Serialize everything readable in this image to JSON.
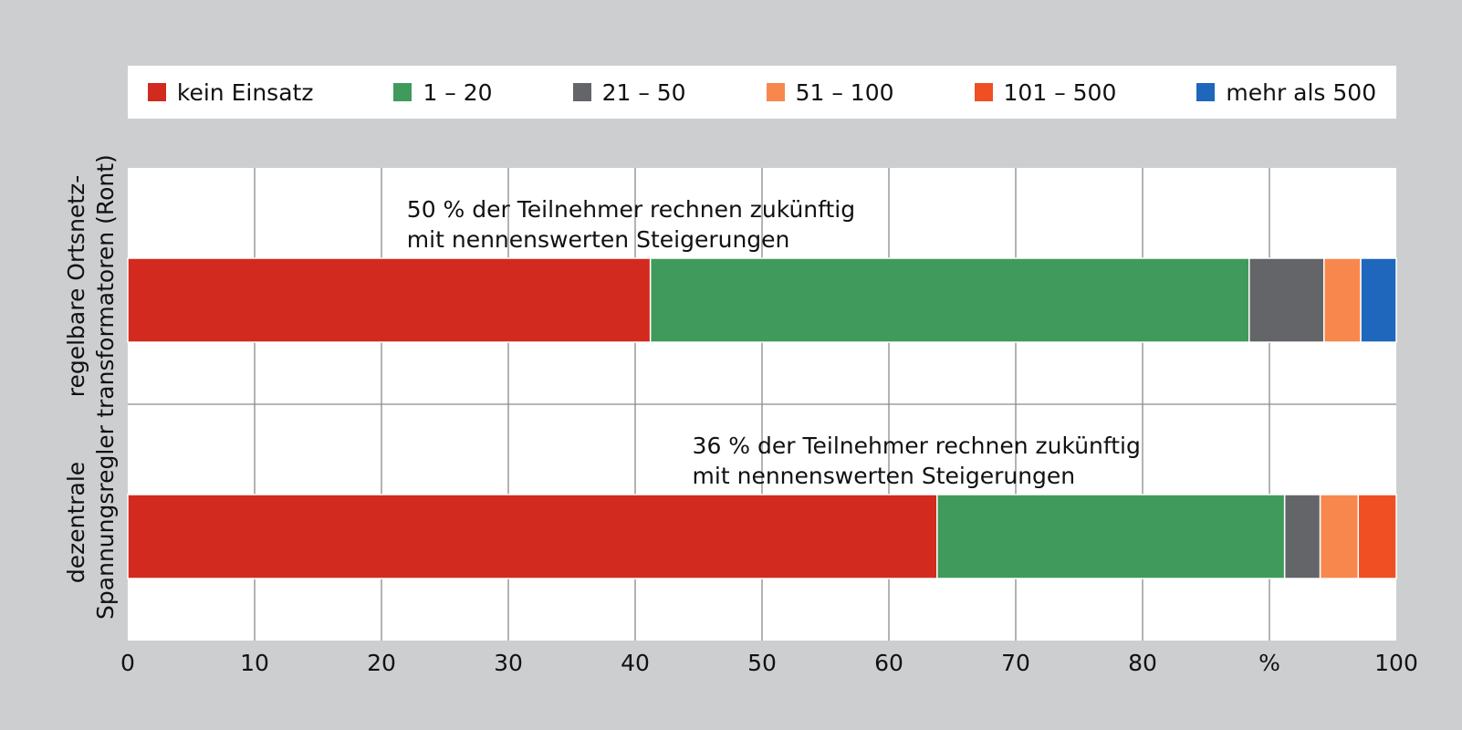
{
  "chart_data": {
    "type": "bar",
    "orientation": "horizontal",
    "stacked": true,
    "categories": [
      [
        "regelbare Ortsnetz-",
        "transformatoren (Ront)"
      ],
      [
        "dezentrale",
        "Spannungsregler"
      ]
    ],
    "series": [
      {
        "name": "kein Einsatz",
        "color": "#d22a1e",
        "values": [
          41.2,
          63.8
        ]
      },
      {
        "name": "1 – 20",
        "color": "#409a5c",
        "values": [
          47.2,
          27.4
        ]
      },
      {
        "name": "21 – 50",
        "color": "#646568",
        "values": [
          5.9,
          2.8
        ]
      },
      {
        "name": "51 – 100",
        "color": "#f8874e",
        "values": [
          2.9,
          3.0
        ]
      },
      {
        "name": "101 – 500",
        "color": "#f04e23",
        "values": [
          0,
          3.0
        ]
      },
      {
        "name": "mehr als 500",
        "color": "#1f67bc",
        "values": [
          2.8,
          0
        ]
      }
    ],
    "xlim": [
      0,
      100
    ],
    "xticks": [
      "0",
      "10",
      "20",
      "30",
      "40",
      "50",
      "60",
      "70",
      "80",
      "%",
      "100"
    ],
    "grid": true,
    "legend": "top",
    "annotations": [
      {
        "lines": [
          "50 % der Teilnehmer rechnen zukünftig",
          "mit nennenswerten Steigerungen"
        ],
        "x": 22
      },
      {
        "lines": [
          "36 % der Teilnehmer rechnen zukünftig",
          "mit nennenswerten Steigerungen"
        ],
        "x": 44.5
      }
    ]
  }
}
